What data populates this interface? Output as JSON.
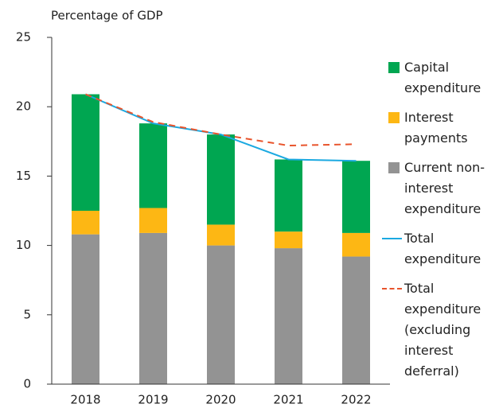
{
  "chart_data": {
    "type": "bar",
    "subtitle": "Percentage of GDP",
    "categories": [
      "2018",
      "2019",
      "2020",
      "2021",
      "2022"
    ],
    "series": [
      {
        "name": "Capital expenditure",
        "color": "#00a651",
        "kind": "bar",
        "values": [
          8.4,
          6.1,
          6.5,
          5.2,
          5.2
        ]
      },
      {
        "name": "Interest payments",
        "color": "#fdb714",
        "kind": "bar",
        "values": [
          1.7,
          1.8,
          1.5,
          1.2,
          1.7
        ]
      },
      {
        "name": "Current non-interest expenditure",
        "color": "#939393",
        "kind": "bar",
        "values": [
          10.8,
          10.9,
          10.0,
          9.8,
          9.2
        ]
      },
      {
        "name": "Total expenditure",
        "color": "#1ba9e1",
        "kind": "line",
        "values": [
          20.9,
          18.8,
          18.0,
          16.2,
          16.1
        ]
      },
      {
        "name": "Total expenditure (excluding interest deferral)",
        "color": "#e8542c",
        "kind": "line",
        "dashed": true,
        "values": [
          20.9,
          18.9,
          18.0,
          17.2,
          17.3
        ]
      }
    ],
    "ylim": [
      0,
      25
    ],
    "yticks": [
      0,
      5,
      10,
      15,
      20,
      25
    ]
  }
}
